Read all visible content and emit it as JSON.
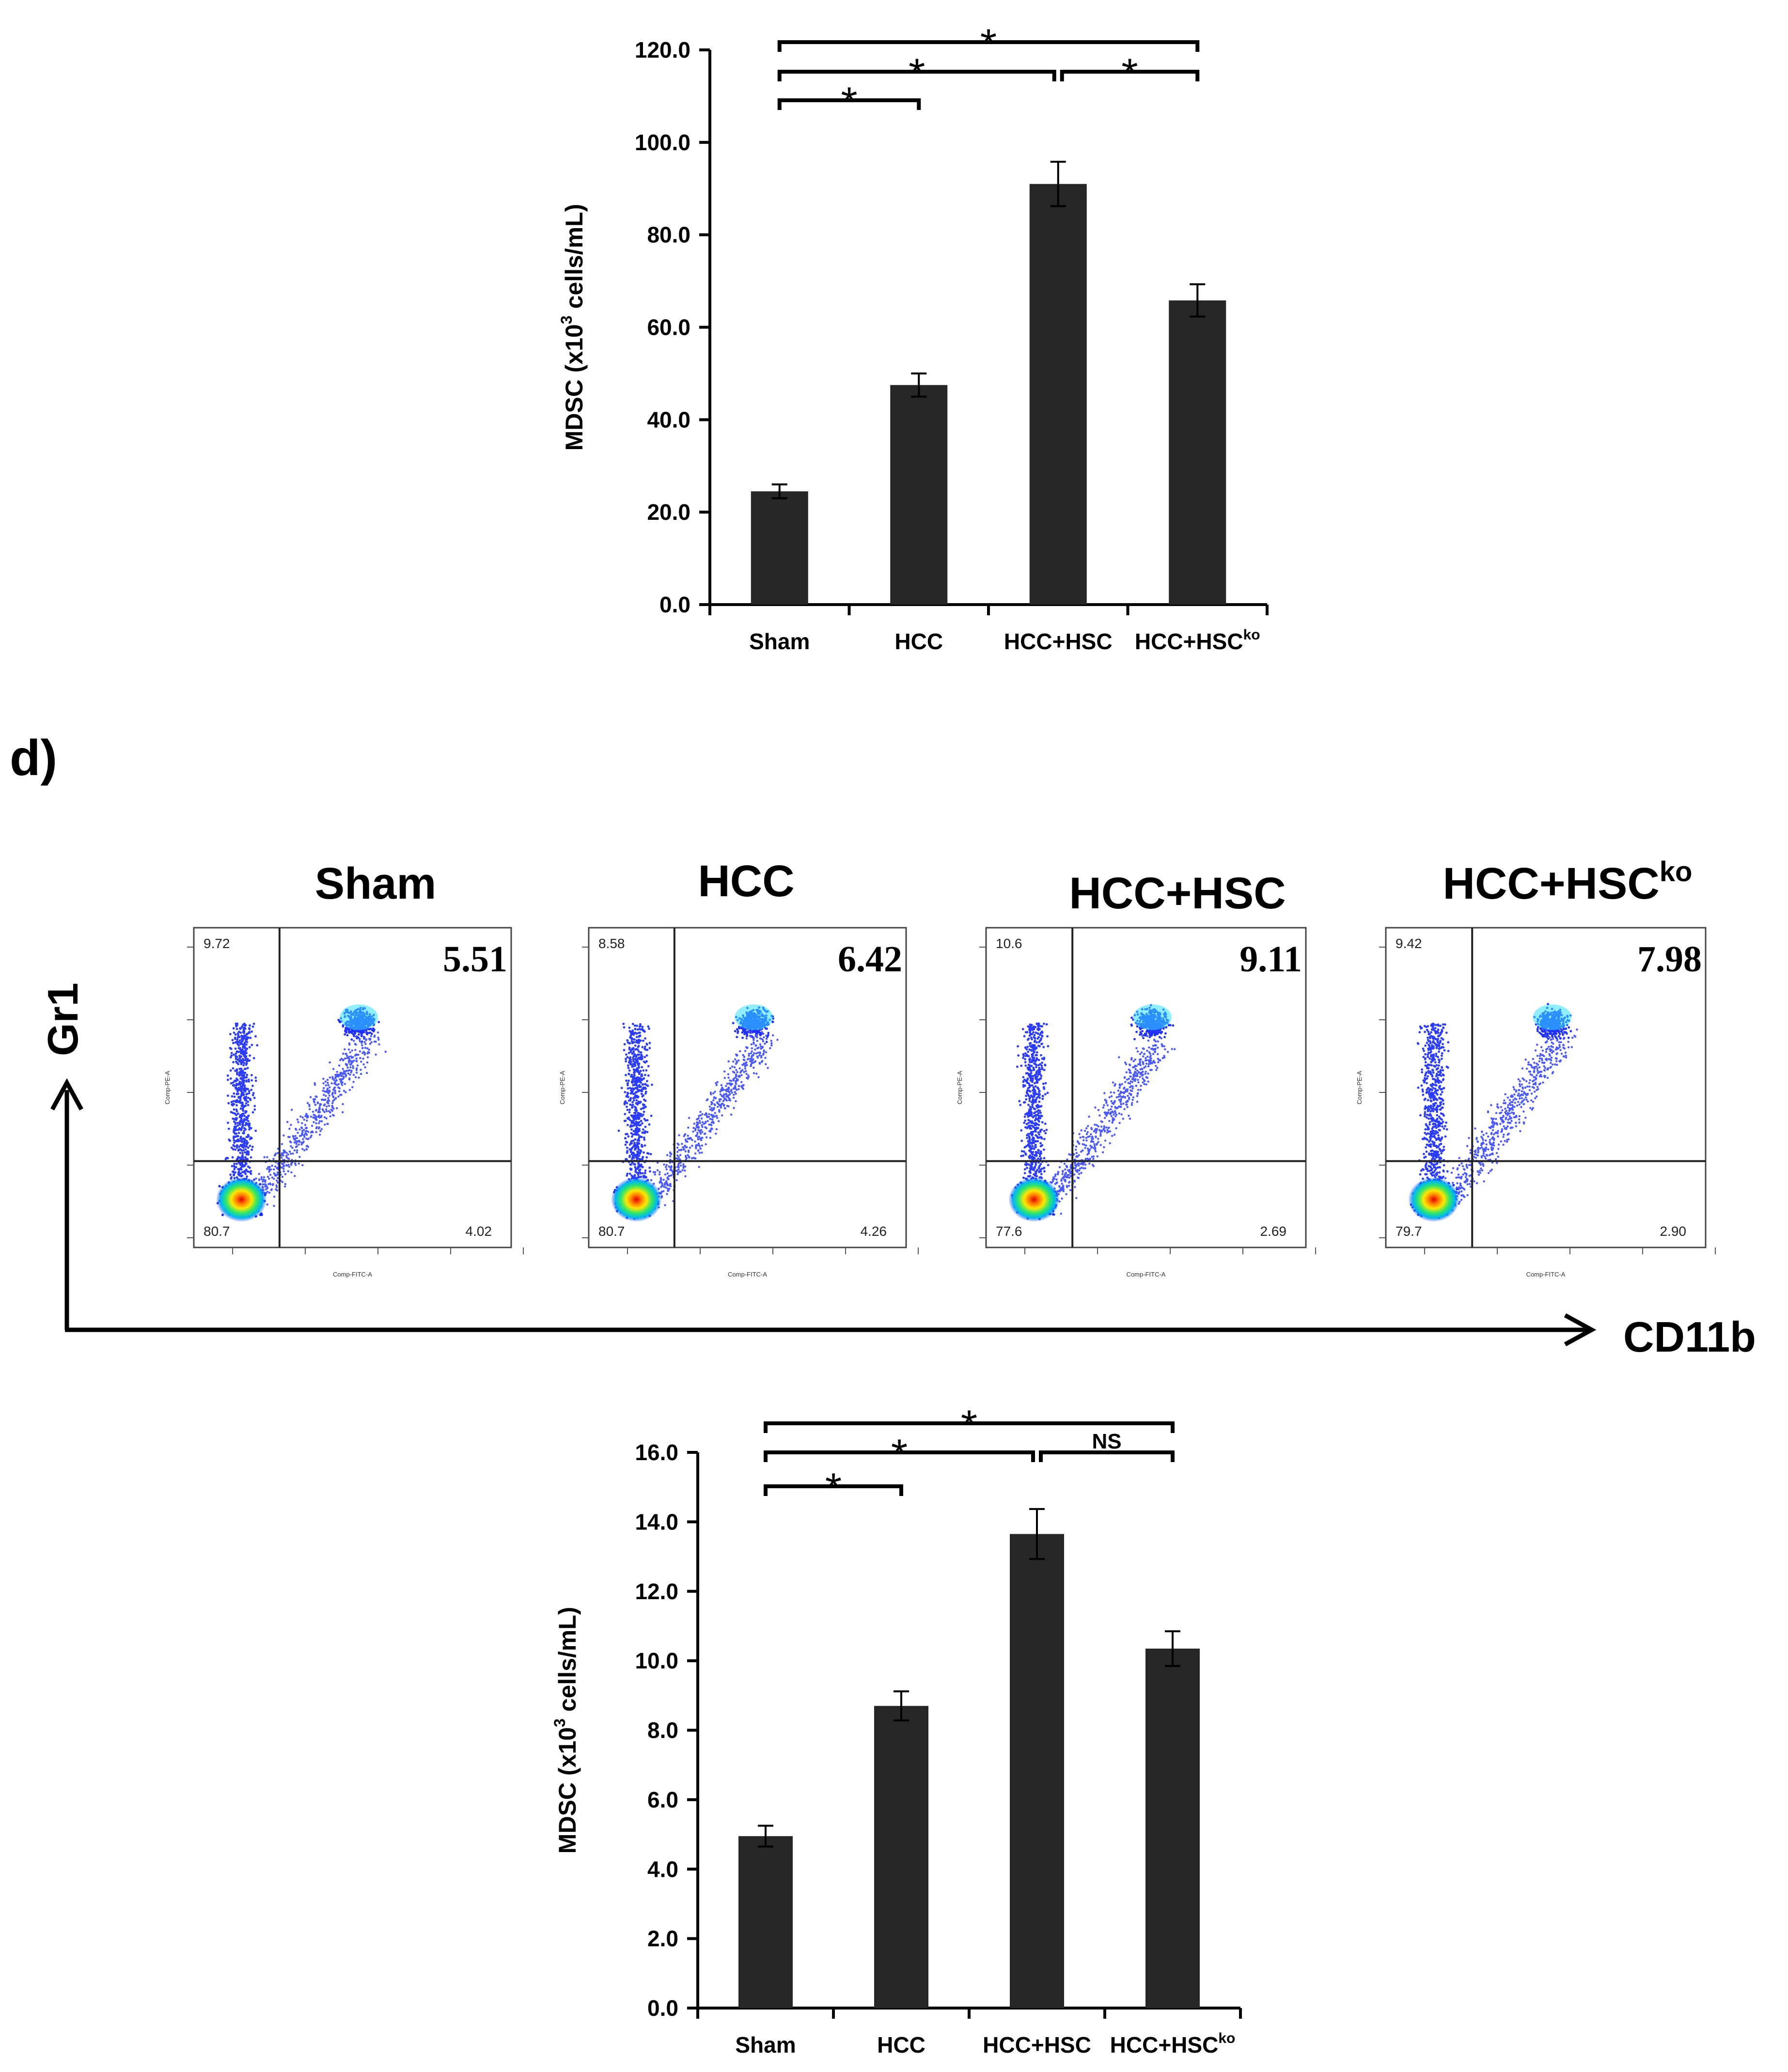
{
  "panel_label": "d)",
  "chart_data": [
    {
      "type": "bar",
      "categories": [
        "Sham",
        "HCC",
        "HCC+HSC",
        "HCC+HSC"
      ],
      "category_superscripts": [
        "",
        "",
        "",
        "ko"
      ],
      "values": [
        24.5,
        47.5,
        91.0,
        65.8
      ],
      "errors": [
        1.5,
        2.5,
        4.8,
        3.5
      ],
      "ylabel_parts": [
        "MDSC (x10",
        "3",
        " cells/mL)"
      ],
      "ylim": [
        0,
        120
      ],
      "ytick_labels": [
        "0.0",
        "20.0",
        "40.0",
        "60.0",
        "80.0",
        "100.0",
        "120.0"
      ],
      "bar_color": "#262626",
      "significance": [
        {
          "from": 0,
          "to": 1,
          "label": "*"
        },
        {
          "from": 0,
          "to": 2,
          "label": "*"
        },
        {
          "from": 2,
          "to": 3,
          "label": "*"
        },
        {
          "from": 0,
          "to": 3,
          "label": "*"
        }
      ]
    },
    {
      "type": "bar",
      "categories": [
        "Sham",
        "HCC",
        "HCC+HSC",
        "HCC+HSC"
      ],
      "category_superscripts": [
        "",
        "",
        "",
        "ko"
      ],
      "values": [
        4.95,
        8.7,
        13.65,
        10.35
      ],
      "errors": [
        0.3,
        0.42,
        0.72,
        0.5
      ],
      "ylabel_parts": [
        "MDSC (x10",
        "3",
        " cells/mL)"
      ],
      "ylim": [
        0,
        16
      ],
      "ytick_labels": [
        "0.0",
        "2.0",
        "4.0",
        "6.0",
        "8.0",
        "10.0",
        "12.0",
        "14.0",
        "16.0"
      ],
      "bar_color": "#262626",
      "significance": [
        {
          "from": 0,
          "to": 1,
          "label": "*"
        },
        {
          "from": 0,
          "to": 2,
          "label": "*"
        },
        {
          "from": 2,
          "to": 3,
          "label": "NS"
        },
        {
          "from": 0,
          "to": 3,
          "label": "*"
        }
      ]
    }
  ],
  "flow_cytometry": {
    "x_axis_label": "CD11b",
    "y_axis_label": "Gr1",
    "plot_x_label": "Comp-FITC-A",
    "plot_y_label": "Comp-PE-A",
    "plots": [
      {
        "title": "Sham",
        "title_sup": "",
        "ul": "9.72",
        "ur": "5.51",
        "ll": "80.7",
        "lr": "4.02"
      },
      {
        "title": "HCC",
        "title_sup": "",
        "ul": "8.58",
        "ur": "6.42",
        "ll": "80.7",
        "lr": "4.26"
      },
      {
        "title": "HCC+HSC",
        "title_sup": "",
        "ul": "10.6",
        "ur": "9.11",
        "ll": "77.6",
        "lr": "2.69"
      },
      {
        "title": "HCC+HSC",
        "title_sup": "ko",
        "ul": "9.42",
        "ur": "7.98",
        "ll": "79.7",
        "lr": "2.90"
      }
    ]
  }
}
